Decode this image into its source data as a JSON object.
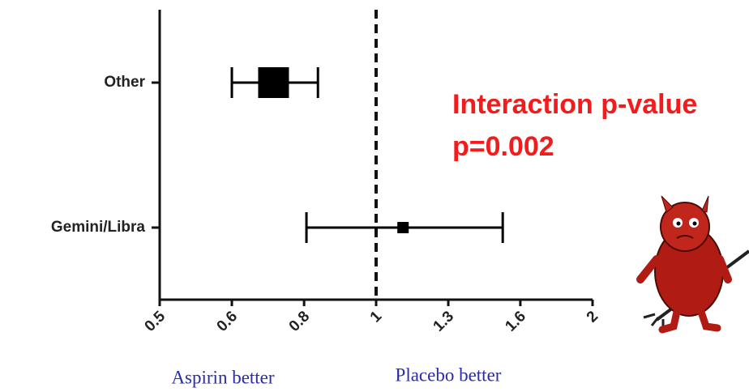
{
  "chart_data": {
    "type": "forest",
    "categories": [
      "Other",
      "Gemini/Libra"
    ],
    "estimates": [
      0.72,
      1.09
    ],
    "ci_low": [
      0.63,
      0.8
    ],
    "ci_high": [
      0.83,
      1.5
    ],
    "xlim": [
      0.5,
      2
    ],
    "xscale": "log",
    "xticks": [
      0.5,
      {
        "value": 0.63,
        "label": "0.6"
      },
      {
        "value": 0.794,
        "label": "0.8"
      },
      1,
      {
        "value": 1.26,
        "label": "1.3"
      },
      {
        "value": 1.587,
        "label": "1.6"
      },
      2
    ],
    "reference_line": 1,
    "annotations": [
      "Interaction p-value",
      "p=0.002"
    ],
    "left_label": "Aspirin better",
    "right_label": "Placebo better",
    "color": "#000000",
    "annotation_color": "#f21c1c"
  }
}
